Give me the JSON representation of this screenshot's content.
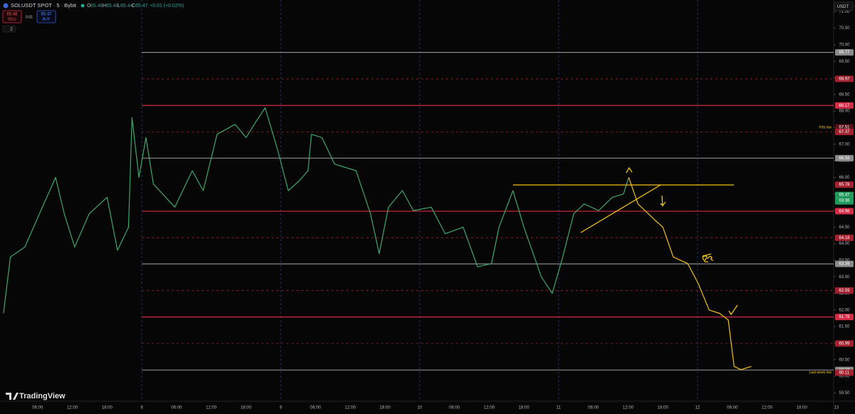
{
  "header": {
    "symbol": "SOLUSDT SPOT · 5 · Bybit",
    "ohlc": [
      [
        "O",
        "65.46"
      ],
      [
        "H",
        "65.48"
      ],
      [
        "L",
        "65.44"
      ],
      [
        "C",
        "65.47"
      ]
    ],
    "change": "+0.01 (+0.02%)",
    "sell_price": "65.46",
    "sell": "SELL",
    "spread": "0.01",
    "buy_price": "65.47",
    "buy": "BUY",
    "indicators": "2",
    "currency": "USDT",
    "logo": "TradingView"
  },
  "chart_data": {
    "type": "line",
    "x": [
      0.1,
      1.3,
      3.8,
      6.3,
      9.1,
      10.6,
      12.4,
      14.9,
      18.0,
      19.8,
      21.7,
      22.3,
      23.5,
      24.7,
      26.0,
      29.7,
      32.7,
      34.6,
      37.0,
      40.1,
      42.0,
      43.8,
      45.3,
      47.5,
      49.3,
      51.2,
      52.7,
      53.3,
      55.1,
      57.3,
      61.0,
      63.5,
      65.0,
      66.6,
      69.0,
      70.9,
      74.0,
      76.4,
      79.5,
      82.0,
      84.4,
      85.7,
      88.1,
      90.0,
      93.0,
      94.9,
      96.7,
      98.6,
      100.4,
      102.9,
      105.3,
      107.2,
      108.1,
      109.7,
      111.5,
      112.7,
      114.0,
      115.8,
      118.3,
      120.1,
      122.0,
      123.8,
      125.3,
      126.3,
      127.5,
      129.3
    ],
    "series": [
      {
        "color": "#3fa66b",
        "values": [
          61.9,
          63.6,
          63.9,
          64.9,
          66.0,
          64.9,
          63.9,
          64.9,
          65.4,
          63.8,
          64.5,
          67.8,
          66.0,
          67.2,
          65.8,
          65.1,
          66.2,
          65.6,
          67.3,
          67.6,
          67.2,
          67.7,
          68.1,
          66.8,
          65.6,
          65.9,
          66.2,
          67.3,
          67.2,
          66.4,
          66.2,
          64.9,
          63.7,
          65.1,
          65.6,
          65.0,
          65.1,
          64.3,
          64.5,
          63.3,
          63.4,
          64.5,
          65.6,
          64.5,
          63.0,
          62.5,
          63.6,
          64.9,
          65.2,
          65.0,
          65.4,
          65.5,
          66.0,
          null,
          null,
          null,
          null,
          null,
          null,
          null,
          null,
          null,
          null,
          null,
          null,
          null
        ]
      },
      {
        "color": "#f2c014",
        "values": [
          null,
          null,
          null,
          null,
          null,
          null,
          null,
          null,
          null,
          null,
          null,
          null,
          null,
          null,
          null,
          null,
          null,
          null,
          null,
          null,
          null,
          null,
          null,
          null,
          null,
          null,
          null,
          null,
          null,
          null,
          null,
          null,
          null,
          null,
          null,
          null,
          null,
          null,
          null,
          null,
          null,
          null,
          null,
          null,
          null,
          null,
          null,
          null,
          null,
          null,
          null,
          null,
          66.0,
          65.2,
          64.9,
          64.7,
          64.5,
          63.6,
          63.4,
          62.8,
          62.0,
          61.9,
          61.7,
          60.3,
          60.2,
          60.3
        ]
      }
    ],
    "xlim": [
      -0.5,
      143.5
    ],
    "xticks": [
      {
        "value": 6,
        "label": "06:00"
      },
      {
        "value": 12,
        "label": "12:00"
      },
      {
        "value": 18,
        "label": "18:00"
      },
      {
        "value": 24,
        "label": "8"
      },
      {
        "value": 30,
        "label": "06:00"
      },
      {
        "value": 36,
        "label": "12:00"
      },
      {
        "value": 42,
        "label": "18:00"
      },
      {
        "value": 48,
        "label": "9"
      },
      {
        "value": 54,
        "label": "06:00"
      },
      {
        "value": 60,
        "label": "12:00"
      },
      {
        "value": 66,
        "label": "18:00"
      },
      {
        "value": 72,
        "label": "10"
      },
      {
        "value": 78,
        "label": "06:00"
      },
      {
        "value": 84,
        "label": "12:00"
      },
      {
        "value": 90,
        "label": "18:00"
      },
      {
        "value": 96,
        "label": "11"
      },
      {
        "value": 102,
        "label": "06:00"
      },
      {
        "value": 108,
        "label": "12:00"
      },
      {
        "value": 114,
        "label": "18:00"
      },
      {
        "value": 120,
        "label": "12"
      },
      {
        "value": 126,
        "label": "06:00"
      },
      {
        "value": 132,
        "label": "12:00"
      },
      {
        "value": 138,
        "label": "18:00"
      },
      {
        "value": 144,
        "label": "13"
      }
    ],
    "ylim": [
      59.25,
      71.35
    ],
    "yticks": [
      {
        "value": 59.5,
        "label": "59.50"
      },
      {
        "value": 60,
        "label": "60.00"
      },
      {
        "value": 60.5,
        "label": "60.50"
      },
      {
        "value": 61,
        "label": "61.00"
      },
      {
        "value": 61.5,
        "label": "61.50"
      },
      {
        "value": 62,
        "label": "62.00"
      },
      {
        "value": 62.5,
        "label": "62.50"
      },
      {
        "value": 63,
        "label": "63.00"
      },
      {
        "value": 63.5,
        "label": "63.50"
      },
      {
        "value": 64,
        "label": "64.00"
      },
      {
        "value": 64.5,
        "label": "64.50"
      },
      {
        "value": 65,
        "label": "65.00"
      },
      {
        "value": 65.5,
        "label": "65.50"
      },
      {
        "value": 66,
        "label": "66.00"
      },
      {
        "value": 66.5,
        "label": "66.50"
      },
      {
        "value": 67,
        "label": "67.00"
      },
      {
        "value": 67.5,
        "label": "67.50"
      },
      {
        "value": 68,
        "label": "68.00"
      },
      {
        "value": 68.5,
        "label": "68.50"
      },
      {
        "value": 69,
        "label": "69.00"
      },
      {
        "value": 69.5,
        "label": "69.50"
      },
      {
        "value": 70,
        "label": "70.00"
      },
      {
        "value": 70.5,
        "label": "70.50"
      },
      {
        "value": 71,
        "label": "71.00"
      }
    ],
    "levels": [
      {
        "value": 69.77,
        "color": "#8a8a8a",
        "style": "solid"
      },
      {
        "value": 68.97,
        "color": "#a3202f",
        "style": "dotted"
      },
      {
        "value": 68.17,
        "color": "#d62b45",
        "style": "solid"
      },
      {
        "value": 67.51,
        "color": "#5a1018",
        "style": "none",
        "note": "Feb low"
      },
      {
        "value": 67.37,
        "color": "#a3202f",
        "style": "dotted"
      },
      {
        "value": 66.58,
        "color": "#8a8a8a",
        "style": "solid"
      },
      {
        "value": 65.78,
        "color": "#a3202f",
        "style": "none"
      },
      {
        "value": 65.47,
        "color": "#1f9a5c",
        "style": "none",
        "sublabel": "03:36"
      },
      {
        "value": 64.98,
        "color": "#d62b45",
        "style": "solid"
      },
      {
        "value": 64.18,
        "color": "#a3202f",
        "style": "dotted"
      },
      {
        "value": 63.39,
        "color": "#8a8a8a",
        "style": "solid"
      },
      {
        "value": 62.59,
        "color": "#a3202f",
        "style": "dotted"
      },
      {
        "value": 61.79,
        "color": "#d62b45",
        "style": "solid"
      },
      {
        "value": 60.99,
        "color": "#a3202f",
        "style": "dotted"
      },
      {
        "value": 60.19,
        "color": "#8a8a8a",
        "style": "solid"
      },
      {
        "value": 60.11,
        "color": "#a3202f",
        "style": "none",
        "note": "Last week low"
      }
    ]
  }
}
